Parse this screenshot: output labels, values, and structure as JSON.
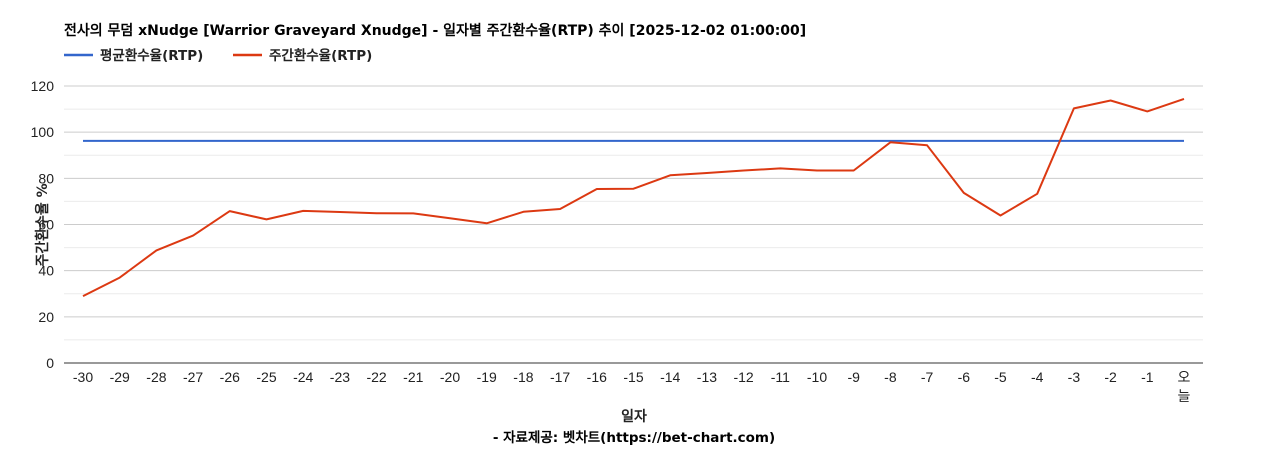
{
  "title": "전사의 무덤 xNudge [Warrior Graveyard Xnudge] - 일자별 주간환수율(RTP) 추이 [2025-12-02 01:00:00]",
  "legend": [
    {
      "label": "평균환수율(RTP)",
      "color": "#3366cc"
    },
    {
      "label": "주간환수율(RTP)",
      "color": "#dc3912"
    }
  ],
  "y_axis": {
    "title": "주간환수율 %",
    "ticks": [
      "0",
      "20",
      "40",
      "60",
      "80",
      "100",
      "120"
    ]
  },
  "x_axis": {
    "title": "일자"
  },
  "source": "- 자료제공: 벳차트(https://bet-chart.com)",
  "chart_data": {
    "type": "line",
    "title": "전사의 무덤 xNudge [Warrior Graveyard Xnudge] - 일자별 주간환수율(RTP) 추이 [2025-12-02 01:00:00]",
    "xlabel": "일자",
    "ylabel": "주간환수율 %",
    "ylim": [
      0,
      120
    ],
    "grid": true,
    "legend_position": "top",
    "categories": [
      "-30",
      "-29",
      "-28",
      "-27",
      "-26",
      "-25",
      "-24",
      "-23",
      "-22",
      "-21",
      "-20",
      "-19",
      "-18",
      "-17",
      "-16",
      "-15",
      "-14",
      "-13",
      "-12",
      "-11",
      "-10",
      "-9",
      "-8",
      "-7",
      "-6",
      "-5",
      "-4",
      "-3",
      "-2",
      "-1",
      "오늘"
    ],
    "series": [
      {
        "name": "평균환수율(RTP)",
        "color": "#3366cc",
        "values": [
          96.2,
          96.2,
          96.2,
          96.2,
          96.2,
          96.2,
          96.2,
          96.2,
          96.2,
          96.2,
          96.2,
          96.2,
          96.2,
          96.2,
          96.2,
          96.2,
          96.2,
          96.2,
          96.2,
          96.2,
          96.2,
          96.2,
          96.2,
          96.2,
          96.2,
          96.2,
          96.2,
          96.2,
          96.2,
          96.2,
          96.2
        ]
      },
      {
        "name": "주간환수율(RTP)",
        "color": "#dc3912",
        "values": [
          29.0,
          37.0,
          48.8,
          55.2,
          65.8,
          62.2,
          65.9,
          65.4,
          64.9,
          64.8,
          62.7,
          60.5,
          65.5,
          66.7,
          75.4,
          75.5,
          81.3,
          82.3,
          83.4,
          84.3,
          83.4,
          83.4,
          95.6,
          94.3,
          73.7,
          63.9,
          73.3,
          110.3,
          113.7,
          109.0,
          114.4
        ]
      }
    ],
    "source": "- 자료제공: 벳차트(https://bet-chart.com)"
  }
}
